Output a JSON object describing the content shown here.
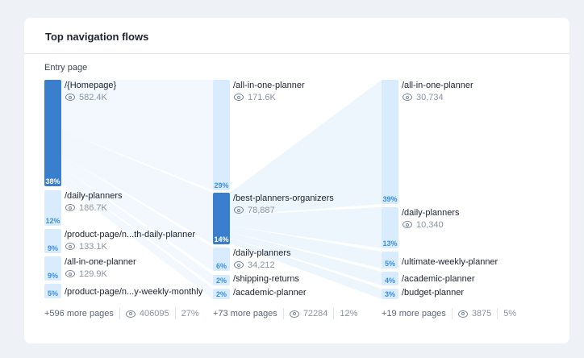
{
  "title": "Top navigation flows",
  "entry_label": "Entry page",
  "colors": {
    "accent": "#3a7fce",
    "light": "#d9ecfd",
    "flow": "#eaf4fd"
  },
  "columns": [
    {
      "nodes": [
        {
          "label": "/{Homepage}",
          "views": "582.4K",
          "pct": "38%",
          "active": true
        },
        {
          "label": "/daily-planners",
          "views": "186.7K",
          "pct": "12%"
        },
        {
          "label": "/product-page/n...th-daily-planner",
          "views": "133.1K",
          "pct": "9%"
        },
        {
          "label": "/all-in-one-planner",
          "views": "129.9K",
          "pct": "9%"
        },
        {
          "label": "/product-page/n...y-weekly-monthly",
          "pct": "5%"
        }
      ],
      "footer": {
        "more": "+596 more pages",
        "views": "406095",
        "pct": "27%"
      }
    },
    {
      "nodes": [
        {
          "label": "/all-in-one-planner",
          "views": "171.6K",
          "pct": "29%"
        },
        {
          "label": "/best-planners-organizers",
          "views": "78,887",
          "pct": "14%",
          "active": true
        },
        {
          "label": "/daily-planners",
          "views": "34,212",
          "pct": "6%"
        },
        {
          "label": "/shipping-returns",
          "pct": "2%"
        },
        {
          "label": "/academic-planner",
          "pct": "2%"
        }
      ],
      "footer": {
        "more": "+73 more pages",
        "views": "72284",
        "pct": "12%"
      }
    },
    {
      "nodes": [
        {
          "label": "/all-in-one-planner",
          "views": "30,734",
          "pct": "39%"
        },
        {
          "label": "/daily-planners",
          "views": "10,340",
          "pct": "13%"
        },
        {
          "label": "/ultimate-weekly-planner",
          "pct": "5%"
        },
        {
          "label": "/academic-planner",
          "pct": "4%"
        },
        {
          "label": "/budget-planner",
          "pct": "3%"
        }
      ],
      "footer": {
        "more": "+19 more pages",
        "views": "3875",
        "pct": "5%"
      }
    }
  ]
}
